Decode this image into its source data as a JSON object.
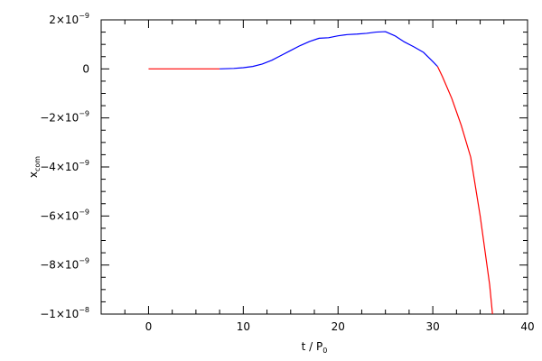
{
  "chart_data": {
    "type": "line",
    "xlabel": {
      "main": "t / P",
      "sub": "0"
    },
    "ylabel": {
      "main": "x",
      "sub": "com"
    },
    "xlim": [
      -5,
      40
    ],
    "ylim": [
      -1e-08,
      2e-09
    ],
    "grid": false,
    "x_ticks": [
      {
        "value": 0,
        "label": "0"
      },
      {
        "value": 10,
        "label": "10"
      },
      {
        "value": 20,
        "label": "20"
      },
      {
        "value": 30,
        "label": "30"
      },
      {
        "value": 40,
        "label": "40"
      }
    ],
    "y_ticks": [
      {
        "value": 2e-09,
        "mant": "2×10",
        "exp": "−9"
      },
      {
        "value": 0,
        "mant": "0",
        "exp": ""
      },
      {
        "value": -2e-09,
        "mant": "−2×10",
        "exp": "−9"
      },
      {
        "value": -4e-09,
        "mant": "−4×10",
        "exp": "−9"
      },
      {
        "value": -6e-09,
        "mant": "−6×10",
        "exp": "−9"
      },
      {
        "value": -8e-09,
        "mant": "−8×10",
        "exp": "−9"
      },
      {
        "value": -1e-08,
        "mant": "−1×10",
        "exp": "−8"
      }
    ],
    "series": [
      {
        "color": "#ff0000",
        "x": [
          0,
          2,
          4,
          6,
          7.5
        ],
        "y": [
          0,
          0,
          0,
          0,
          0
        ]
      },
      {
        "color": "#0000ff",
        "x": [
          7.5,
          9,
          10,
          11,
          12,
          13,
          14,
          15,
          16,
          17,
          18,
          19,
          20,
          21,
          22,
          23,
          24,
          25,
          26,
          27,
          28,
          29,
          30,
          30.5
        ],
        "y": [
          0,
          2e-11,
          5e-11,
          1e-10,
          2e-10,
          3.5e-10,
          5.5e-10,
          7.5e-10,
          9.5e-10,
          1.12e-09,
          1.25e-09,
          1.27e-09,
          1.35e-09,
          1.4e-09,
          1.42e-09,
          1.45e-09,
          1.5e-09,
          1.52e-09,
          1.35e-09,
          1.1e-09,
          9e-10,
          6.8e-10,
          3e-10,
          1e-10
        ]
      },
      {
        "color": "#ff0000",
        "x": [
          30.5,
          31,
          32,
          33,
          34,
          35,
          36,
          36.3
        ],
        "y": [
          1e-10,
          -3e-10,
          -1.2e-09,
          -2.3e-09,
          -3.6e-09,
          -6e-09,
          -8.8e-09,
          -1e-08
        ]
      }
    ]
  }
}
